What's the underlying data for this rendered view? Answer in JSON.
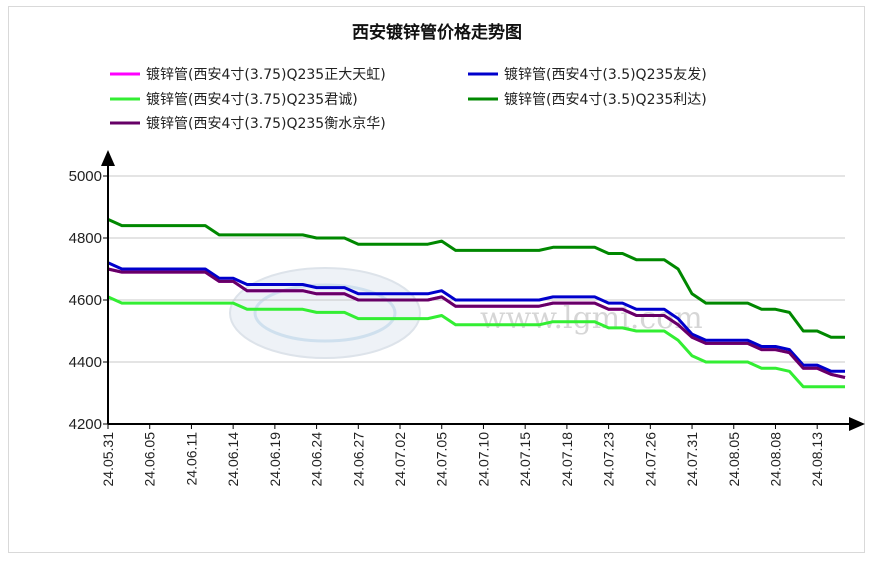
{
  "chart_data": {
    "type": "line",
    "title": "西安镀锌管价格走势图",
    "xlabel": "",
    "ylabel": "",
    "ylim": [
      4200,
      5000
    ],
    "yticks": [
      4200,
      4400,
      4600,
      4800,
      5000
    ],
    "grid": true,
    "legend_position": "top",
    "watermark": "www.lgmi.com",
    "x": [
      "24.05.31",
      "24.06.03",
      "24.06.04",
      "24.06.05",
      "24.06.06",
      "24.06.07",
      "24.06.11",
      "24.06.12",
      "24.06.13",
      "24.06.14",
      "24.06.17",
      "24.06.18",
      "24.06.19",
      "24.06.20",
      "24.06.21",
      "24.06.24",
      "24.06.25",
      "24.06.26",
      "24.06.27",
      "24.06.28",
      "24.07.01",
      "24.07.02",
      "24.07.03",
      "24.07.04",
      "24.07.05",
      "24.07.08",
      "24.07.09",
      "24.07.10",
      "24.07.11",
      "24.07.12",
      "24.07.15",
      "24.07.16",
      "24.07.17",
      "24.07.18",
      "24.07.19",
      "24.07.22",
      "24.07.23",
      "24.07.24",
      "24.07.25",
      "24.07.26",
      "24.07.29",
      "24.07.30",
      "24.07.31",
      "24.08.01",
      "24.08.02",
      "24.08.05",
      "24.08.06",
      "24.08.07",
      "24.08.08",
      "24.08.09",
      "24.08.12",
      "24.08.13",
      "24.08.14",
      "24.08.15"
    ],
    "xtick_labels": [
      "24.05.31",
      "24.06.05",
      "24.06.11",
      "24.06.14",
      "24.06.19",
      "24.06.24",
      "24.06.27",
      "24.07.02",
      "24.07.05",
      "24.07.10",
      "24.07.15",
      "24.07.18",
      "24.07.23",
      "24.07.26",
      "24.07.31",
      "24.08.05",
      "24.08.08",
      "24.08.13"
    ],
    "series": [
      {
        "name": "镀锌管(西安4寸(3.75)Q235正大天虹)",
        "color": "#ff00ff",
        "values": [
          4700,
          4690,
          4690,
          4690,
          4690,
          4690,
          4690,
          4690,
          4660,
          4660,
          4630,
          4630,
          4630,
          4630,
          4630,
          4620,
          4620,
          4620,
          4600,
          4600,
          4600,
          4600,
          4600,
          4600,
          4610,
          4580,
          4580,
          4580,
          4580,
          4580,
          4580,
          4580,
          4590,
          4590,
          4590,
          4590,
          4570,
          4570,
          4550,
          4550,
          4550,
          4520,
          4480,
          4460,
          4460,
          4460,
          4460,
          4440,
          4440,
          4430,
          4380,
          4380,
          4360,
          4350
        ]
      },
      {
        "name": "镀锌管(西安4寸(3.5)Q235友发)",
        "color": "#0000cc",
        "values": [
          4720,
          4700,
          4700,
          4700,
          4700,
          4700,
          4700,
          4700,
          4670,
          4670,
          4650,
          4650,
          4650,
          4650,
          4650,
          4640,
          4640,
          4640,
          4620,
          4620,
          4620,
          4620,
          4620,
          4620,
          4630,
          4600,
          4600,
          4600,
          4600,
          4600,
          4600,
          4600,
          4610,
          4610,
          4610,
          4610,
          4590,
          4590,
          4570,
          4570,
          4570,
          4540,
          4490,
          4470,
          4470,
          4470,
          4470,
          4450,
          4450,
          4440,
          4390,
          4390,
          4370,
          4370
        ]
      },
      {
        "name": "镀锌管(西安4寸(3.75)Q235君诚)",
        "color": "#33ee33",
        "values": [
          4610,
          4590,
          4590,
          4590,
          4590,
          4590,
          4590,
          4590,
          4590,
          4590,
          4570,
          4570,
          4570,
          4570,
          4570,
          4560,
          4560,
          4560,
          4540,
          4540,
          4540,
          4540,
          4540,
          4540,
          4550,
          4520,
          4520,
          4520,
          4520,
          4520,
          4520,
          4520,
          4530,
          4530,
          4530,
          4530,
          4510,
          4510,
          4500,
          4500,
          4500,
          4470,
          4420,
          4400,
          4400,
          4400,
          4400,
          4380,
          4380,
          4370,
          4320,
          4320,
          4320,
          4320
        ]
      },
      {
        "name": "镀锌管(西安4寸(3.5)Q235利达)",
        "color": "#008800",
        "values": [
          4860,
          4840,
          4840,
          4840,
          4840,
          4840,
          4840,
          4840,
          4810,
          4810,
          4810,
          4810,
          4810,
          4810,
          4810,
          4800,
          4800,
          4800,
          4780,
          4780,
          4780,
          4780,
          4780,
          4780,
          4790,
          4760,
          4760,
          4760,
          4760,
          4760,
          4760,
          4760,
          4770,
          4770,
          4770,
          4770,
          4750,
          4750,
          4730,
          4730,
          4730,
          4700,
          4620,
          4590,
          4590,
          4590,
          4590,
          4570,
          4570,
          4560,
          4500,
          4500,
          4480,
          4480
        ]
      },
      {
        "name": "镀锌管(西安4寸(3.75)Q235衡水京华)",
        "color": "#660066",
        "values": [
          4700,
          4690,
          4690,
          4690,
          4690,
          4690,
          4690,
          4690,
          4660,
          4660,
          4630,
          4630,
          4630,
          4630,
          4630,
          4620,
          4620,
          4620,
          4600,
          4600,
          4600,
          4600,
          4600,
          4600,
          4610,
          4580,
          4580,
          4580,
          4580,
          4580,
          4580,
          4580,
          4590,
          4590,
          4590,
          4590,
          4570,
          4570,
          4550,
          4550,
          4550,
          4520,
          4480,
          4460,
          4460,
          4460,
          4460,
          4440,
          4440,
          4430,
          4380,
          4380,
          4360,
          4350
        ]
      }
    ]
  }
}
